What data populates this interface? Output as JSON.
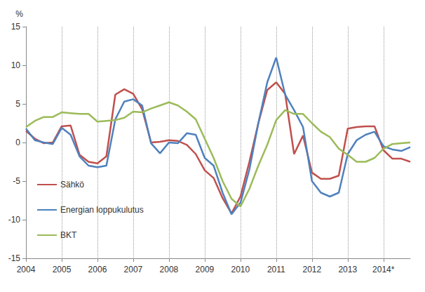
{
  "chart_data": {
    "type": "line",
    "categories": [
      "2004",
      null,
      null,
      null,
      "2005",
      null,
      null,
      null,
      "2006",
      null,
      null,
      null,
      "2007",
      null,
      null,
      null,
      "2008",
      null,
      null,
      null,
      "2009",
      null,
      null,
      null,
      "2010",
      null,
      null,
      null,
      "2011",
      null,
      null,
      null,
      "2012",
      null,
      null,
      null,
      "2013",
      null,
      null,
      null,
      "2014*",
      null,
      null,
      null
    ],
    "series": [
      {
        "name": "Sähkö",
        "color": "#c0504d",
        "values": [
          1.5,
          0.5,
          -0.1,
          0.0,
          2.1,
          2.2,
          -1.6,
          -2.5,
          -2.7,
          -1.8,
          6.2,
          6.9,
          6.3,
          4.3,
          0.0,
          0.1,
          0.3,
          0.2,
          -0.3,
          -1.5,
          -3.6,
          -4.6,
          -7.2,
          -9.2,
          -7.0,
          -2.5,
          2.5,
          6.8,
          7.8,
          6.3,
          -1.5,
          0.9,
          -3.9,
          -4.7,
          -4.7,
          -4.3,
          1.8,
          2.0,
          2.1,
          2.1,
          -1.0,
          -2.1,
          -2.1,
          -2.5
        ]
      },
      {
        "name": "Energian loppukulutus",
        "color": "#4f81bd",
        "values": [
          1.8,
          0.3,
          0.0,
          -0.2,
          1.9,
          1.0,
          -1.8,
          -3.0,
          -3.2,
          -3.0,
          3.0,
          5.3,
          5.6,
          4.8,
          -0.1,
          -1.4,
          0.0,
          -0.1,
          1.2,
          1.0,
          -2.0,
          -3.0,
          -6.5,
          -9.3,
          -7.8,
          -3.5,
          2.5,
          7.8,
          11.0,
          6.2,
          4.2,
          2.0,
          -5.0,
          -6.5,
          -7.0,
          -6.5,
          -1.5,
          0.3,
          1.0,
          1.4,
          -0.5,
          -0.9,
          -1.1,
          -0.6
        ]
      },
      {
        "name": "BKT",
        "color": "#9bbb59",
        "values": [
          2.0,
          2.8,
          3.3,
          3.3,
          3.9,
          3.8,
          3.7,
          3.7,
          2.7,
          2.8,
          2.9,
          3.2,
          4.0,
          3.9,
          4.4,
          4.8,
          5.2,
          4.8,
          4.0,
          3.0,
          0.5,
          -2.0,
          -5.0,
          -7.3,
          -8.3,
          -6.0,
          -3.0,
          -0.3,
          2.9,
          4.2,
          3.7,
          3.7,
          2.5,
          1.4,
          0.7,
          -0.8,
          -1.6,
          -2.5,
          -2.5,
          -2.0,
          -0.8,
          -0.2,
          -0.1,
          0.0
        ]
      }
    ],
    "y_label": "%",
    "ylim": [
      -15,
      15
    ],
    "yticks": [
      -15,
      -10,
      -5,
      0,
      5,
      10,
      15
    ],
    "grid": true,
    "legend": "lower left"
  }
}
